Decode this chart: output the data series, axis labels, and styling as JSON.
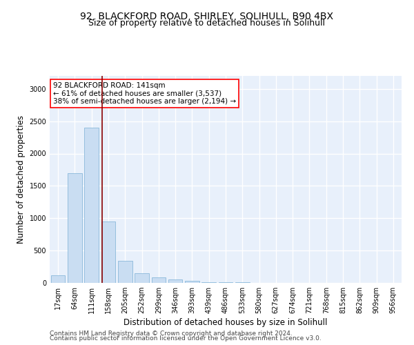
{
  "title1": "92, BLACKFORD ROAD, SHIRLEY, SOLIHULL, B90 4BX",
  "title2": "Size of property relative to detached houses in Solihull",
  "xlabel": "Distribution of detached houses by size in Solihull",
  "ylabel": "Number of detached properties",
  "bar_color": "#c9ddf2",
  "bar_edge_color": "#7aafd4",
  "categories": [
    "17sqm",
    "64sqm",
    "111sqm",
    "158sqm",
    "205sqm",
    "252sqm",
    "299sqm",
    "346sqm",
    "393sqm",
    "439sqm",
    "486sqm",
    "533sqm",
    "580sqm",
    "627sqm",
    "674sqm",
    "721sqm",
    "768sqm",
    "815sqm",
    "862sqm",
    "909sqm",
    "956sqm"
  ],
  "values": [
    120,
    1700,
    2400,
    950,
    340,
    150,
    90,
    55,
    35,
    15,
    10,
    8,
    5,
    3,
    2,
    1,
    1,
    1,
    0,
    0,
    0
  ],
  "vline_x": 2.64,
  "annotation_text": "92 BLACKFORD ROAD: 141sqm\n← 61% of detached houses are smaller (3,537)\n38% of semi-detached houses are larger (2,194) →",
  "annotation_box_color": "white",
  "annotation_box_edge_color": "red",
  "vline_color": "#8b0000",
  "footer1": "Contains HM Land Registry data © Crown copyright and database right 2024.",
  "footer2": "Contains public sector information licensed under the Open Government Licence v3.0.",
  "ylim": [
    0,
    3200
  ],
  "yticks": [
    0,
    500,
    1000,
    1500,
    2000,
    2500,
    3000
  ],
  "bg_color": "#e8f0fb",
  "grid_color": "white",
  "title1_fontsize": 10,
  "title2_fontsize": 9,
  "tick_fontsize": 7,
  "label_fontsize": 8.5,
  "footer_fontsize": 6.5,
  "annotation_fontsize": 7.5
}
